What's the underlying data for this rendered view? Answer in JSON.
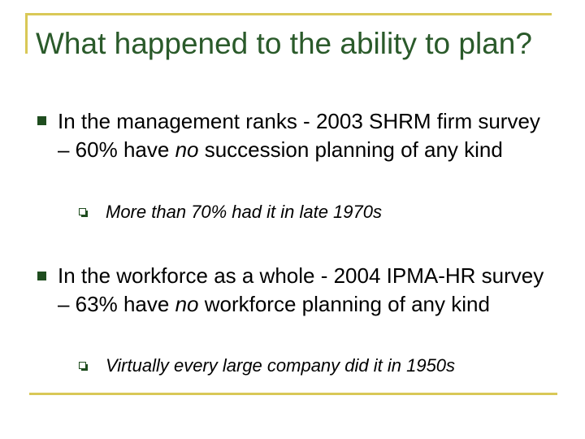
{
  "title": "What happened to the ability to plan?",
  "bullets": [
    {
      "pre": "In the management ranks -  2003 SHRM firm survey – 60% have ",
      "emph": "no",
      "post": " succession planning of any kind",
      "sub": "More than 70% had it in late 1970s"
    },
    {
      "pre": "In the workforce as a whole - 2004 IPMA-HR survey – 63% have ",
      "emph": "no",
      "post": " workforce planning of any kind",
      "sub": "Virtually every large company did it in 1950s"
    }
  ],
  "colors": {
    "title": "#2a5a2a",
    "rule": "#d9c857",
    "marker": "#1f4d1f"
  },
  "icons": {
    "bullet": "filled-square-bullet-icon",
    "sub_bullet": "shadowed-square-bullet-icon"
  }
}
